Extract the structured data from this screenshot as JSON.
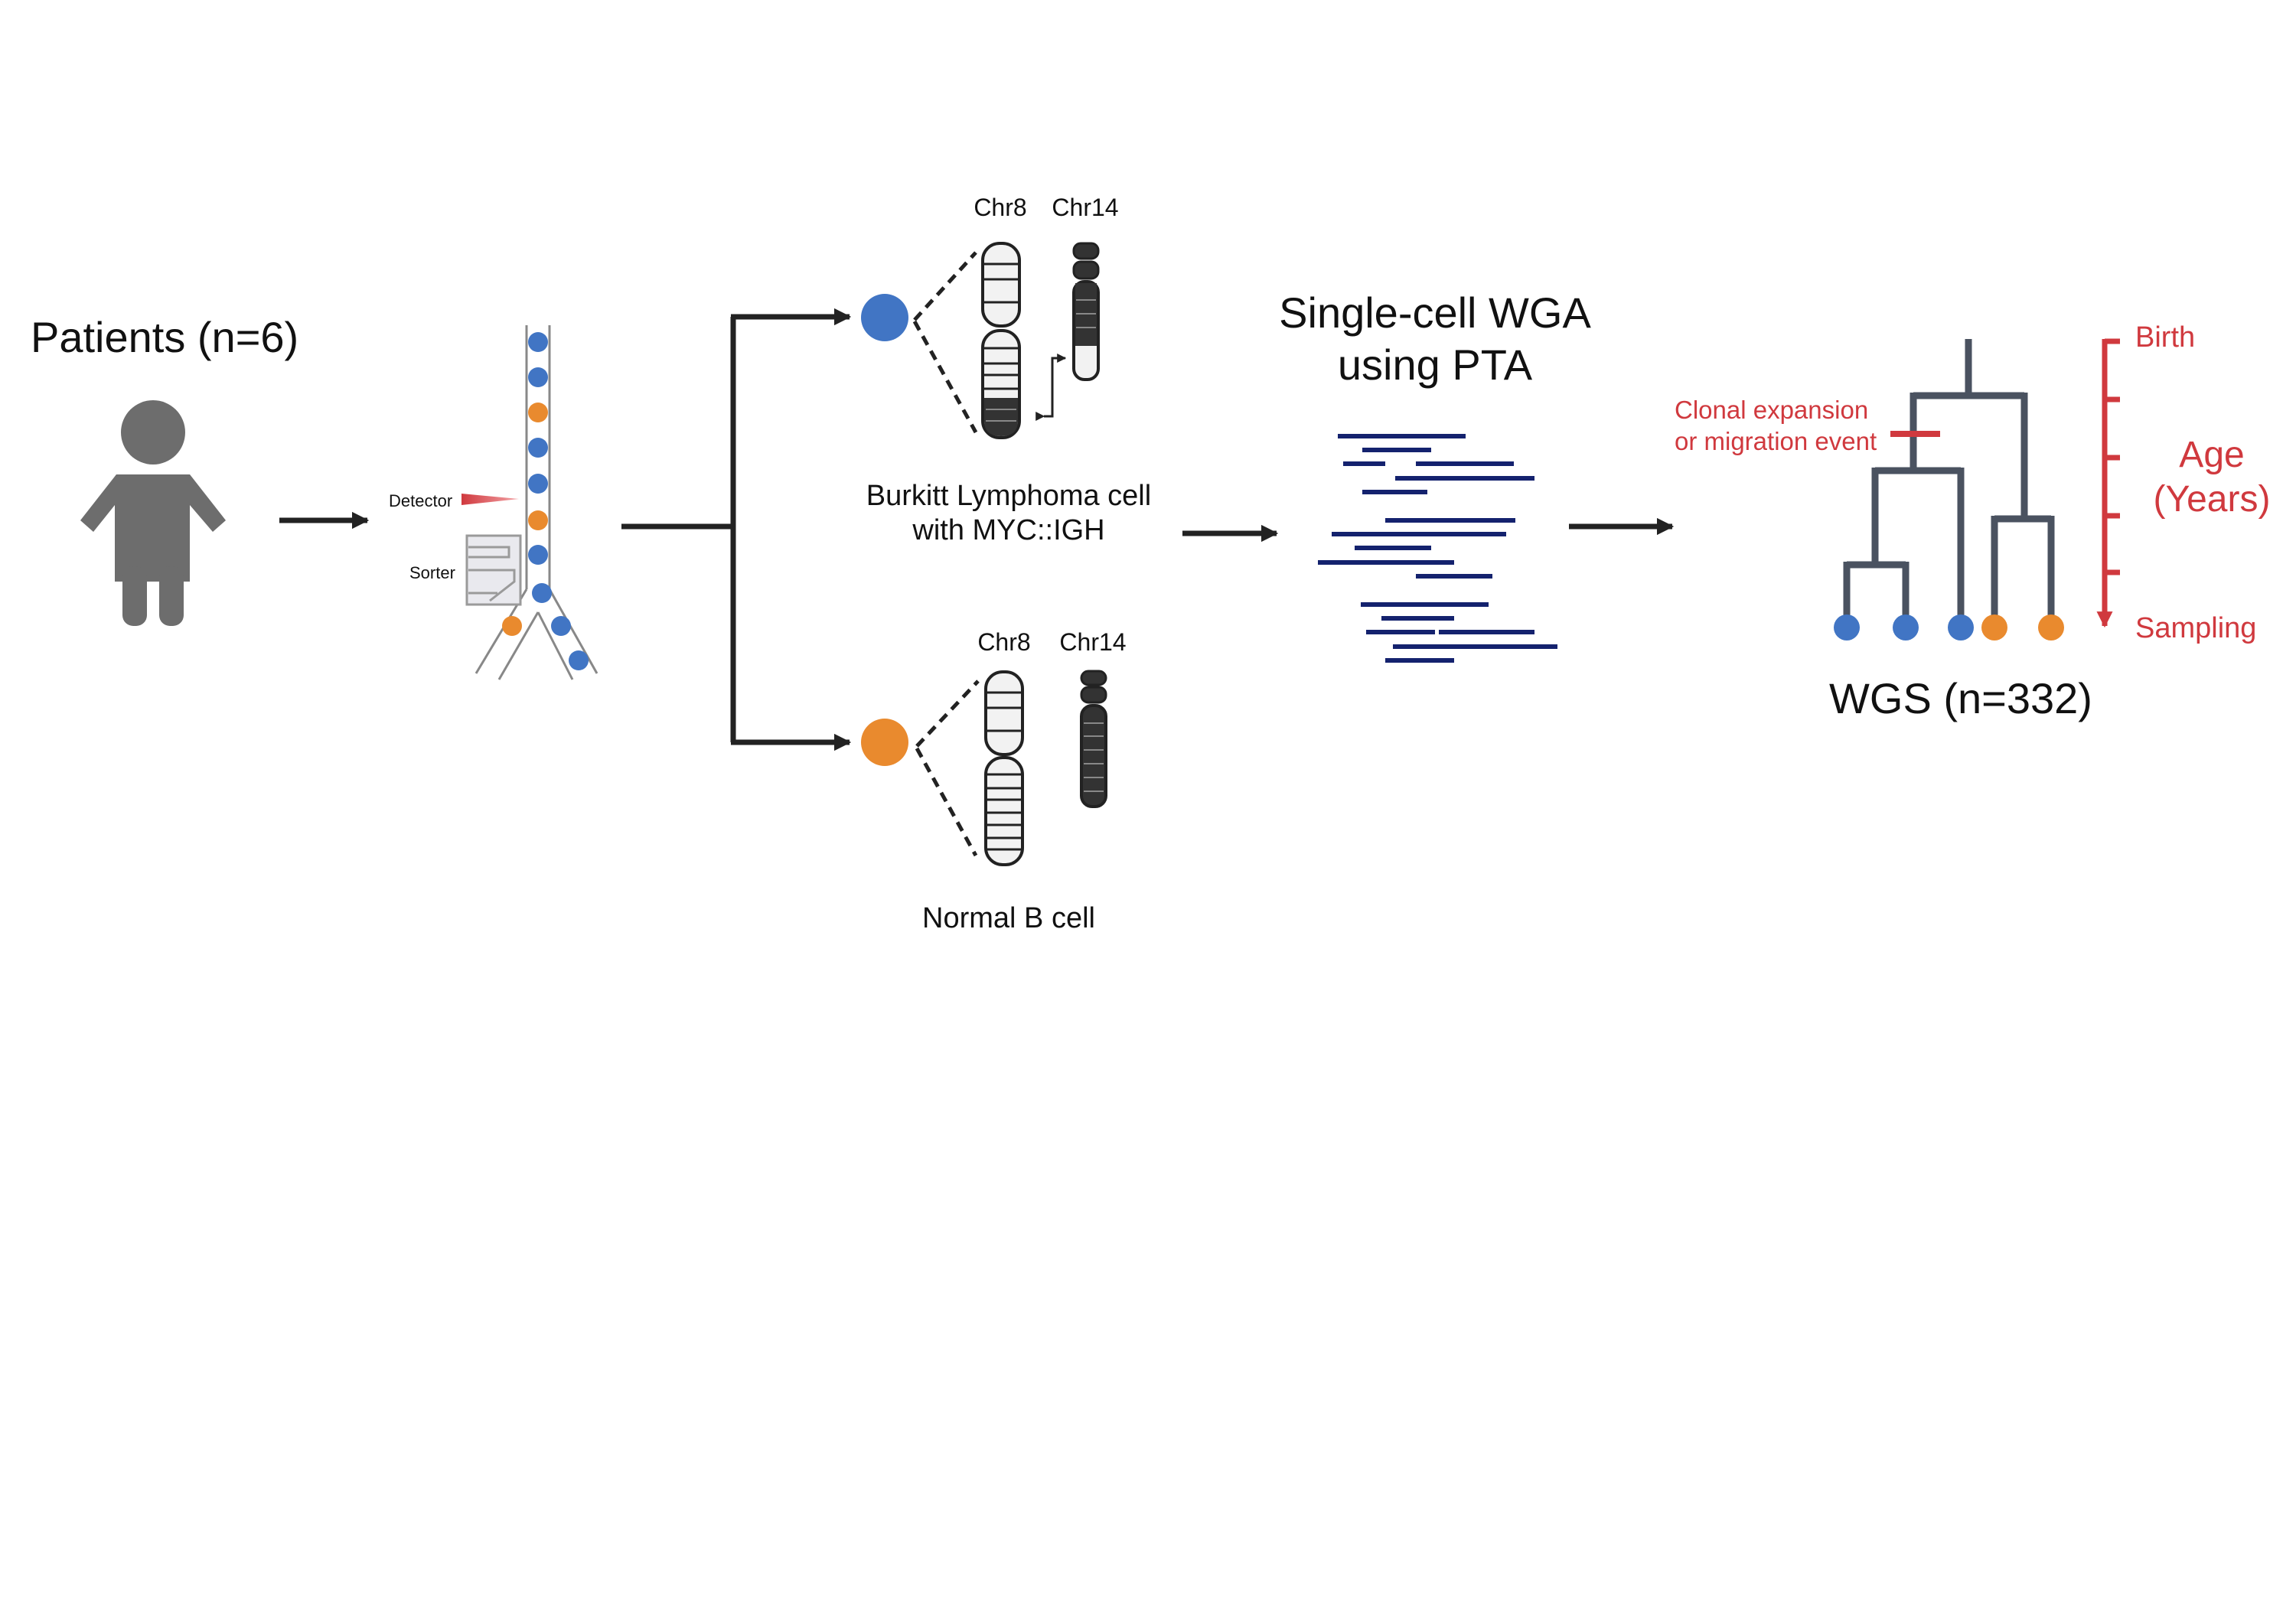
{
  "patients": {
    "label": "Patients (n=6)"
  },
  "sorter": {
    "detector_label": "Detector",
    "sorter_label": "Sorter"
  },
  "tumor_cell": {
    "label_line1": "Burkitt Lymphoma cell",
    "label_line2": "with MYC::IGH",
    "chr_a": "Chr8",
    "chr_b": "Chr14"
  },
  "normal_cell": {
    "label": "Normal B cell",
    "chr_a": "Chr8",
    "chr_b": "Chr14"
  },
  "wga": {
    "line1": "Single-cell WGA",
    "line2": "using PTA"
  },
  "tree": {
    "event_line1": "Clonal expansion",
    "event_line2": "or migration event",
    "axis_top": "Birth",
    "axis_mid_line1": "Age",
    "axis_mid_line2": "(Years)",
    "axis_bottom": "Sampling",
    "wgs_label": "WGS (n=332)",
    "leaves": [
      "tumor",
      "tumor",
      "tumor",
      "normal",
      "normal"
    ]
  },
  "colors": {
    "tumor": "#4175c4",
    "normal": "#e98a2e",
    "arrow": "#222222",
    "person": "#6d6d6d",
    "reads": "#14226e",
    "tree": "#4a5260",
    "accent": "#d0393e"
  }
}
